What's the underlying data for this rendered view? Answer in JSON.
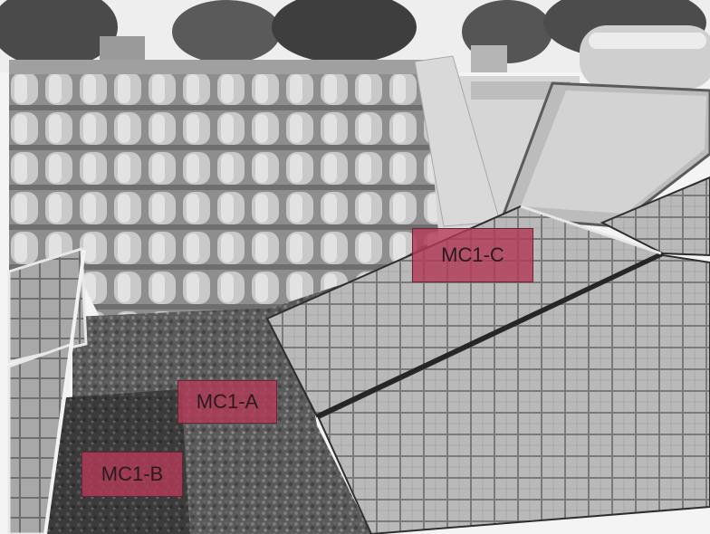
{
  "labels": {
    "mc1_c": "MC1-C",
    "mc1_a": "MC1-A",
    "mc1_b": "MC1-B"
  },
  "colors": {
    "label_fill": "#b23a58",
    "photo_tone": "grayscale"
  }
}
